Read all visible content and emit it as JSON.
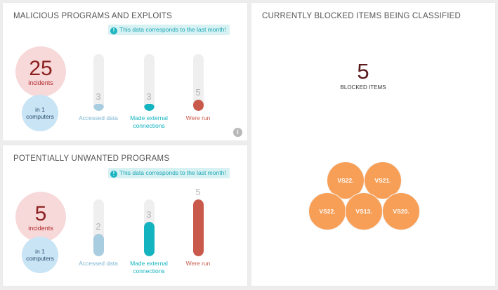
{
  "malicious": {
    "title": "MALICIOUS PROGRAMS AND EXPLOITS",
    "notice": "This data corresponds to the last month!",
    "incidents_count": "25",
    "incidents_label": "incidents",
    "computers_line1": "in 1",
    "computers_line2": "computers",
    "bars": [
      {
        "value": "3",
        "label_1": "Accessed data",
        "label_2": "",
        "color": "#a9cde0",
        "fill_fraction": 0.12
      },
      {
        "value": "3",
        "label_1": "Made external",
        "label_2": "connections",
        "color": "#13b3bf",
        "fill_fraction": 0.12
      },
      {
        "value": "5",
        "label_1": "Were run",
        "label_2": "",
        "color": "#c95a4b",
        "fill_fraction": 0.2
      }
    ]
  },
  "pup": {
    "title": "POTENTIALLY UNWANTED PROGRAMS",
    "notice": "This data corresponds to the last month!",
    "incidents_count": "5",
    "incidents_label": "incidents",
    "computers_line1": "in 1",
    "computers_line2": "computers",
    "bars": [
      {
        "value": "2",
        "label_1": "Accessed data",
        "label_2": "",
        "color": "#a9cde0",
        "fill_fraction": 0.4
      },
      {
        "value": "3",
        "label_1": "Made external",
        "label_2": "connections",
        "color": "#13b3bf",
        "fill_fraction": 0.6
      },
      {
        "value": "5",
        "label_1": "Were run",
        "label_2": "",
        "color": "#c95a4b",
        "fill_fraction": 1.0
      }
    ]
  },
  "blocked": {
    "title": "CURRENTLY BLOCKED ITEMS BEING CLASSIFIED",
    "count": "5",
    "count_label": "BLOCKED ITEMS",
    "items": [
      "VS22.",
      "VS21.",
      "VS22.",
      "VS13.",
      "VS20."
    ],
    "bubble_color": "#f89f57"
  }
}
